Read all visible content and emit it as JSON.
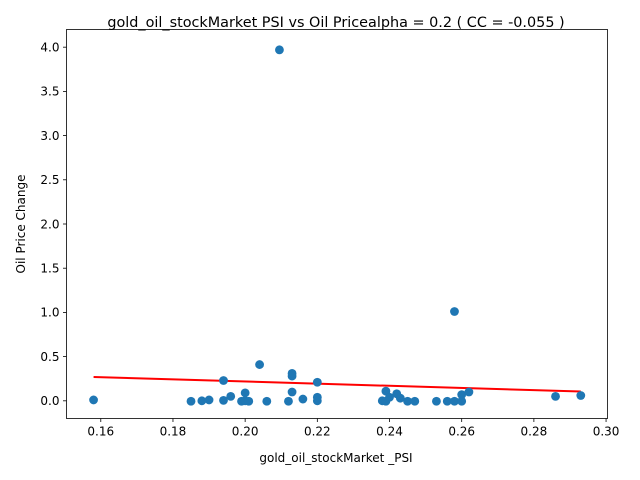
{
  "chart_data": {
    "type": "scatter",
    "title": "gold_oil_stockMarket  PSI vs Oil Pricealpha = 0.2 ( CC = -0.055 )",
    "xlabel": "gold_oil_stockMarket _PSI",
    "ylabel": "Oil Price Change",
    "xlim": [
      0.1505,
      0.3004
    ],
    "ylim": [
      -0.2,
      4.2
    ],
    "xticks": [
      "0.16",
      "0.18",
      "0.20",
      "0.22",
      "0.24",
      "0.26",
      "0.28",
      "0.30"
    ],
    "xtick_values": [
      0.16,
      0.18,
      0.2,
      0.22,
      0.24,
      0.26,
      0.28,
      0.3
    ],
    "yticks": [
      "0.0",
      "0.5",
      "1.0",
      "1.5",
      "2.0",
      "2.5",
      "3.0",
      "3.5",
      "4.0"
    ],
    "ytick_values": [
      0.0,
      0.5,
      1.0,
      1.5,
      2.0,
      2.5,
      3.0,
      3.5,
      4.0
    ],
    "grid": false,
    "points_color": "#1f77b4",
    "line_color": "#ff0000",
    "points": [
      {
        "x": 0.158,
        "y": 0.01
      },
      {
        "x": 0.185,
        "y": -0.005
      },
      {
        "x": 0.188,
        "y": 0.0
      },
      {
        "x": 0.19,
        "y": 0.01
      },
      {
        "x": 0.194,
        "y": 0.23
      },
      {
        "x": 0.194,
        "y": 0.005
      },
      {
        "x": 0.196,
        "y": 0.05
      },
      {
        "x": 0.199,
        "y": -0.005
      },
      {
        "x": 0.2,
        "y": 0.09
      },
      {
        "x": 0.2,
        "y": 0.0
      },
      {
        "x": 0.201,
        "y": -0.005
      },
      {
        "x": 0.204,
        "y": 0.41
      },
      {
        "x": 0.206,
        "y": -0.005
      },
      {
        "x": 0.2095,
        "y": 3.97
      },
      {
        "x": 0.212,
        "y": -0.005
      },
      {
        "x": 0.213,
        "y": 0.28
      },
      {
        "x": 0.213,
        "y": 0.31
      },
      {
        "x": 0.213,
        "y": 0.1
      },
      {
        "x": 0.216,
        "y": 0.02
      },
      {
        "x": 0.22,
        "y": 0.21
      },
      {
        "x": 0.22,
        "y": 0.0
      },
      {
        "x": 0.22,
        "y": 0.04
      },
      {
        "x": 0.238,
        "y": 0.0
      },
      {
        "x": 0.239,
        "y": 0.11
      },
      {
        "x": 0.239,
        "y": -0.005
      },
      {
        "x": 0.24,
        "y": 0.04
      },
      {
        "x": 0.242,
        "y": 0.08
      },
      {
        "x": 0.243,
        "y": 0.03
      },
      {
        "x": 0.245,
        "y": -0.005
      },
      {
        "x": 0.247,
        "y": -0.005
      },
      {
        "x": 0.253,
        "y": -0.005
      },
      {
        "x": 0.256,
        "y": -0.005
      },
      {
        "x": 0.258,
        "y": 1.01
      },
      {
        "x": 0.258,
        "y": -0.005
      },
      {
        "x": 0.26,
        "y": 0.07
      },
      {
        "x": 0.26,
        "y": -0.005
      },
      {
        "x": 0.262,
        "y": 0.1
      },
      {
        "x": 0.286,
        "y": 0.05
      },
      {
        "x": 0.293,
        "y": 0.06
      }
    ],
    "fit_line": [
      {
        "x": 0.158,
        "y": 0.27
      },
      {
        "x": 0.293,
        "y": 0.105
      }
    ]
  }
}
